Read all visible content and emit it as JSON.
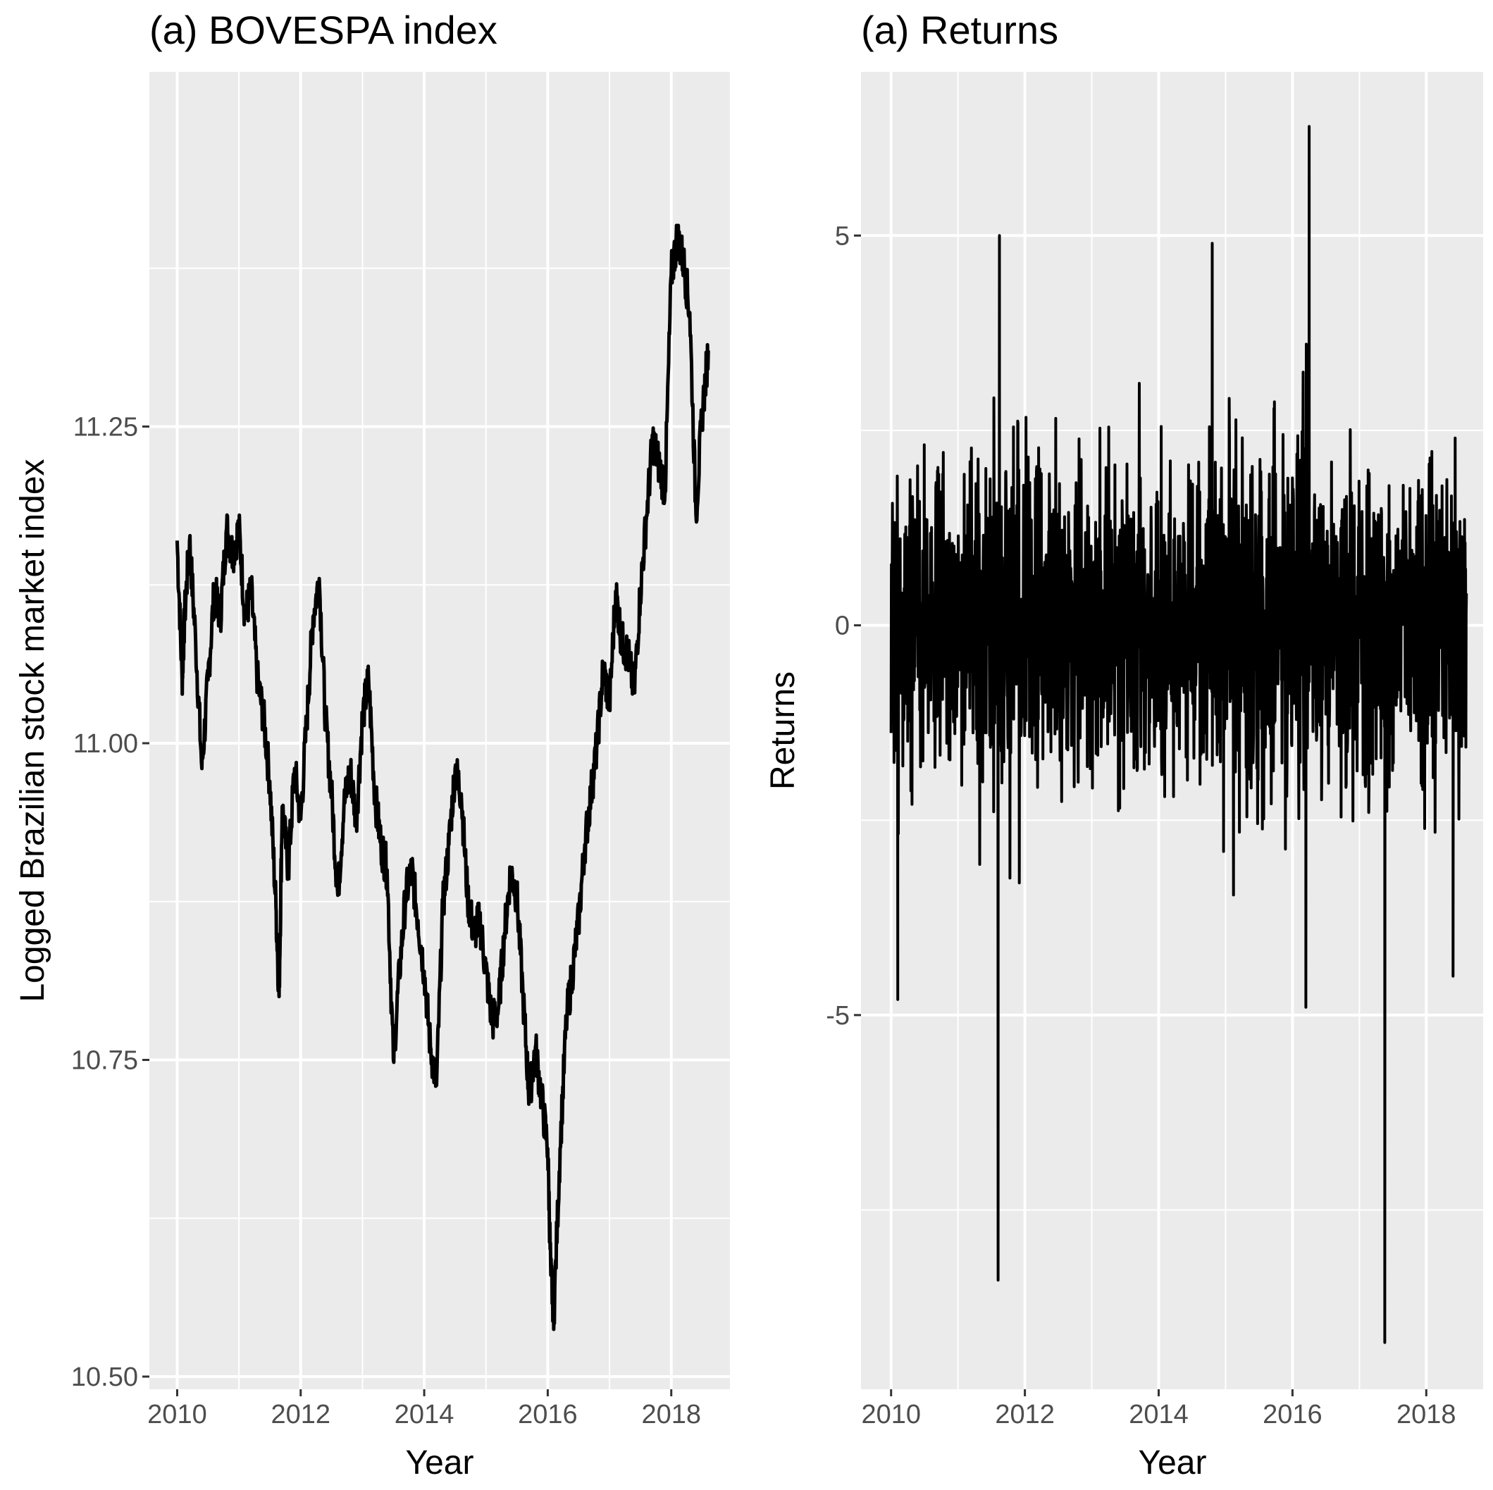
{
  "chart_data": [
    {
      "type": "line",
      "title": "(a) BOVESPA index",
      "xlabel": "Year",
      "ylabel": "Logged Brazilian stock market index",
      "xlim": [
        2009.55,
        2018.95
      ],
      "ylim": [
        10.49,
        11.53
      ],
      "xticks": [
        2010,
        2012,
        2014,
        2016,
        2018
      ],
      "xtick_labels": [
        "2010",
        "2012",
        "2014",
        "2016",
        "2018"
      ],
      "yticks": [
        10.5,
        10.75,
        11.0,
        11.25
      ],
      "ytick_labels": [
        "10.50",
        "10.75",
        "11.00",
        "11.25"
      ],
      "grid": true,
      "series": [
        {
          "x": [
            2010.0,
            2010.08,
            2010.12,
            2010.2,
            2010.3,
            2010.4,
            2010.5,
            2010.6,
            2010.7,
            2010.8,
            2010.9,
            2011.0,
            2011.1,
            2011.2,
            2011.3,
            2011.4,
            2011.5,
            2011.6,
            2011.65,
            2011.7,
            2011.8,
            2011.9,
            2012.0,
            2012.1,
            2012.2,
            2012.3,
            2012.4,
            2012.5,
            2012.6,
            2012.7,
            2012.8,
            2012.9,
            2013.0,
            2013.1,
            2013.2,
            2013.3,
            2013.4,
            2013.5,
            2013.6,
            2013.7,
            2013.8,
            2013.9,
            2014.0,
            2014.1,
            2014.2,
            2014.3,
            2014.4,
            2014.5,
            2014.6,
            2014.7,
            2014.8,
            2014.9,
            2015.0,
            2015.1,
            2015.2,
            2015.3,
            2015.4,
            2015.5,
            2015.6,
            2015.7,
            2015.8,
            2015.9,
            2016.0,
            2016.05,
            2016.1,
            2016.2,
            2016.3,
            2016.4,
            2016.5,
            2016.6,
            2016.7,
            2016.8,
            2016.9,
            2017.0,
            2017.1,
            2017.2,
            2017.3,
            2017.4,
            2017.5,
            2017.6,
            2017.7,
            2017.8,
            2017.9,
            2018.0,
            2018.1,
            2018.2,
            2018.3,
            2018.4,
            2018.5,
            2018.6
          ],
          "y": [
            11.16,
            11.05,
            11.1,
            11.16,
            11.08,
            10.98,
            11.05,
            11.12,
            11.1,
            11.17,
            11.15,
            11.17,
            11.1,
            11.12,
            11.05,
            11.02,
            10.97,
            10.87,
            10.8,
            10.95,
            10.9,
            10.98,
            10.94,
            11.02,
            11.1,
            11.13,
            11.02,
            10.96,
            10.88,
            10.95,
            10.98,
            10.94,
            11.02,
            11.05,
            10.96,
            10.92,
            10.9,
            10.75,
            10.82,
            10.88,
            10.9,
            10.86,
            10.82,
            10.76,
            10.73,
            10.87,
            10.92,
            10.98,
            10.96,
            10.88,
            10.85,
            10.86,
            10.82,
            10.78,
            10.79,
            10.85,
            10.9,
            10.88,
            10.8,
            10.72,
            10.76,
            10.72,
            10.68,
            10.58,
            10.55,
            10.68,
            10.78,
            10.82,
            10.86,
            10.92,
            10.96,
            11.0,
            11.06,
            11.03,
            11.12,
            11.08,
            11.07,
            11.04,
            11.12,
            11.18,
            11.24,
            11.22,
            11.2,
            11.37,
            11.4,
            11.38,
            11.34,
            11.18,
            11.26,
            11.31
          ]
        }
      ]
    },
    {
      "type": "line",
      "title": "(a) Returns",
      "xlabel": "Year",
      "ylabel": "Returns",
      "xlim": [
        2009.55,
        2018.85
      ],
      "ylim": [
        -9.8,
        7.1
      ],
      "xticks": [
        2010,
        2012,
        2014,
        2016,
        2018
      ],
      "xtick_labels": [
        "2010",
        "2012",
        "2014",
        "2016",
        "2018"
      ],
      "yticks": [
        -5,
        0,
        5
      ],
      "ytick_labels": [
        "-5",
        "0",
        "5"
      ],
      "grid": true,
      "extremes": [
        {
          "x": 2010.1,
          "y": -4.8
        },
        {
          "x": 2011.6,
          "y": -8.4
        },
        {
          "x": 2011.62,
          "y": 5.0
        },
        {
          "x": 2014.8,
          "y": 4.9
        },
        {
          "x": 2016.25,
          "y": 6.4
        },
        {
          "x": 2016.2,
          "y": -4.9
        },
        {
          "x": 2017.38,
          "y": -9.2
        },
        {
          "x": 2018.4,
          "y": -4.5
        }
      ]
    }
  ]
}
